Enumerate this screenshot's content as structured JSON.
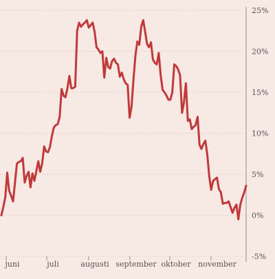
{
  "chart_data": {
    "type": "line",
    "title": "",
    "xlabel": "",
    "ylabel": "",
    "x_tick_labels": [
      "juni",
      "juli",
      "augusti",
      "september",
      "oktober",
      "november"
    ],
    "y_tick_labels": [
      "25%",
      "20%",
      "15%",
      "10%",
      "5%",
      "0%",
      "-5%"
    ],
    "y_ticks": [
      25,
      20,
      15,
      10,
      5,
      0,
      -5
    ],
    "ylim": [
      -5,
      25
    ],
    "grid": true,
    "colors": {
      "background": "#f7e9e4",
      "line": "#c0393b",
      "grid": "#d9c7c2",
      "axis": "#9a8c88"
    },
    "series": [
      {
        "color": "#c0393b",
        "values": [
          0.0,
          1.0,
          2.2,
          5.2,
          3.0,
          2.4,
          1.7,
          4.0,
          6.3,
          6.5,
          6.6,
          7.0,
          4.0,
          4.8,
          5.3,
          3.4,
          5.1,
          4.2,
          5.4,
          6.6,
          5.3,
          6.3,
          8.4,
          7.8,
          7.7,
          8.3,
          9.7,
          10.7,
          11.0,
          11.1,
          12.0,
          15.4,
          14.6,
          14.4,
          15.5,
          17.0,
          15.5,
          15.5,
          15.7,
          22.5,
          23.5,
          23.0,
          23.3,
          23.5,
          23.8,
          22.9,
          23.2,
          23.5,
          22.4,
          20.5,
          20.2,
          19.8,
          20.0,
          16.8,
          19.2,
          18.1,
          17.9,
          18.8,
          19.1,
          18.6,
          18.4,
          16.9,
          17.4,
          16.6,
          16.1,
          15.9,
          11.9,
          13.2,
          16.5,
          19.5,
          21.2,
          20.8,
          23.0,
          23.8,
          22.4,
          20.9,
          20.5,
          21.1,
          19.0,
          18.6,
          18.4,
          19.8,
          17.1,
          15.3,
          15.0,
          14.6,
          14.1,
          14.1,
          15.0,
          18.4,
          18.2,
          17.8,
          17.1,
          12.5,
          13.8,
          16.1,
          11.5,
          11.7,
          10.5,
          10.8,
          11.0,
          12.0,
          8.6,
          8.1,
          8.7,
          9.1,
          7.4,
          4.8,
          3.1,
          4.2,
          4.4,
          4.6,
          3.2,
          2.8,
          1.4,
          1.5,
          1.5,
          1.7,
          1.0,
          0.3,
          0.9,
          1.3,
          -0.5,
          1.3,
          2.1,
          2.8,
          3.6
        ]
      }
    ]
  }
}
